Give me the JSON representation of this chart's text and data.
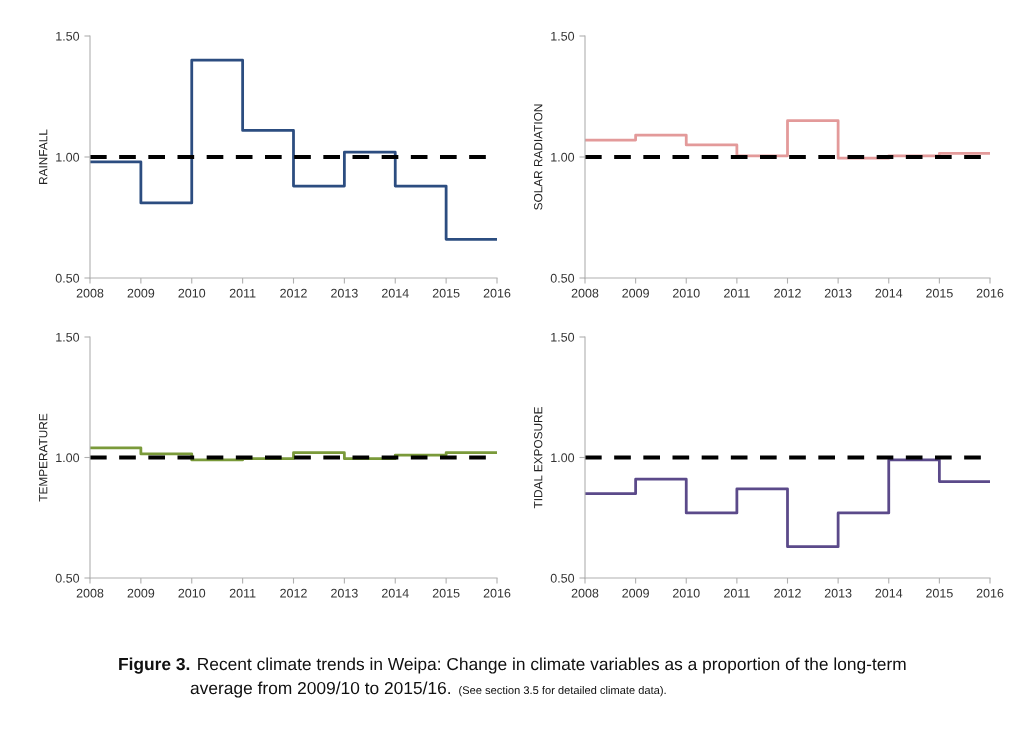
{
  "chart_data": [
    {
      "type": "step",
      "ylabel": "RAINFALL",
      "x": [
        2008,
        2009,
        2010,
        2011,
        2012,
        2013,
        2014,
        2015,
        2016
      ],
      "series": [
        {
          "color": "#2c4d80",
          "values": [
            0.98,
            0.81,
            1.4,
            1.11,
            0.88,
            1.02,
            0.88,
            0.66,
            0.66
          ]
        }
      ],
      "xlim": [
        2008,
        2016
      ],
      "xticks": [
        2008,
        2009,
        2010,
        2011,
        2012,
        2013,
        2014,
        2015,
        2016
      ],
      "ylim": [
        0.5,
        1.5
      ],
      "yticks": [
        {
          "value": 0.5,
          "label": "0.50"
        },
        {
          "value": 1.0,
          "label": "1.00"
        },
        {
          "value": 1.5,
          "label": "1.50"
        }
      ],
      "ref_lines": [
        {
          "axis": "y",
          "value": 1.0,
          "color": "#000000",
          "line_style": "dashed"
        }
      ],
      "grid": false,
      "legend": false
    },
    {
      "type": "step",
      "ylabel": "SOLAR RADIATION",
      "x": [
        2008,
        2009,
        2010,
        2011,
        2012,
        2013,
        2014,
        2015,
        2016
      ],
      "series": [
        {
          "color": "#e39a9a",
          "values": [
            1.07,
            1.09,
            1.05,
            1.005,
            1.15,
            0.995,
            1.005,
            1.015,
            1.015
          ]
        }
      ],
      "xlim": [
        2008,
        2016
      ],
      "xticks": [
        2008,
        2009,
        2010,
        2011,
        2012,
        2013,
        2014,
        2015,
        2016
      ],
      "ylim": [
        0.5,
        1.5
      ],
      "yticks": [
        {
          "value": 0.5,
          "label": "0.50"
        },
        {
          "value": 1.0,
          "label": "1.00"
        },
        {
          "value": 1.5,
          "label": "1.50"
        }
      ],
      "ref_lines": [
        {
          "axis": "y",
          "value": 1.0,
          "color": "#000000",
          "line_style": "dashed"
        }
      ],
      "grid": false,
      "legend": false
    },
    {
      "type": "step",
      "ylabel": "TEMPERATURE",
      "x": [
        2008,
        2009,
        2010,
        2011,
        2012,
        2013,
        2014,
        2015,
        2016
      ],
      "series": [
        {
          "color": "#7a9a3a",
          "values": [
            1.04,
            1.015,
            0.99,
            0.995,
            1.02,
            0.995,
            1.01,
            1.02,
            1.02
          ]
        }
      ],
      "xlim": [
        2008,
        2016
      ],
      "xticks": [
        2008,
        2009,
        2010,
        2011,
        2012,
        2013,
        2014,
        2015,
        2016
      ],
      "ylim": [
        0.5,
        1.5
      ],
      "yticks": [
        {
          "value": 0.5,
          "label": "0.50"
        },
        {
          "value": 1.0,
          "label": "1.00"
        },
        {
          "value": 1.5,
          "label": "1.50"
        }
      ],
      "ref_lines": [
        {
          "axis": "y",
          "value": 1.0,
          "color": "#000000",
          "line_style": "dashed"
        }
      ],
      "grid": false,
      "legend": false
    },
    {
      "type": "step",
      "ylabel": "TIDAL EXPOSURE",
      "x": [
        2008,
        2009,
        2010,
        2011,
        2012,
        2013,
        2014,
        2015,
        2016
      ],
      "series": [
        {
          "color": "#5b4a8a",
          "values": [
            0.85,
            0.91,
            0.77,
            0.87,
            0.63,
            0.77,
            0.99,
            0.9,
            0.9
          ]
        }
      ],
      "xlim": [
        2008,
        2016
      ],
      "xticks": [
        2008,
        2009,
        2010,
        2011,
        2012,
        2013,
        2014,
        2015,
        2016
      ],
      "ylim": [
        0.5,
        1.5
      ],
      "yticks": [
        {
          "value": 0.5,
          "label": "0.50"
        },
        {
          "value": 1.0,
          "label": "1.00"
        },
        {
          "value": 1.5,
          "label": "1.50"
        }
      ],
      "ref_lines": [
        {
          "axis": "y",
          "value": 1.0,
          "color": "#000000",
          "line_style": "dashed"
        }
      ],
      "grid": false,
      "legend": false,
      "annotations": [
        "Figure 3.",
        "Recent climate trends in Weipa: Change in climate variables as a proportion of the long-term",
        "average from 2009/10 to 2015/16.",
        "(See section 3.5 for detailed climate data)."
      ]
    }
  ]
}
